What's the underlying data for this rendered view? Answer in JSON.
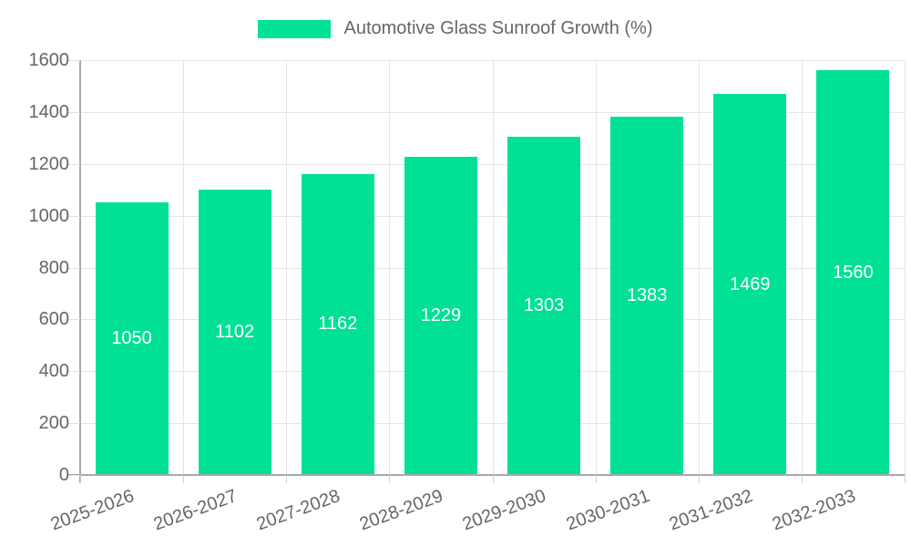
{
  "chart_data": {
    "type": "bar",
    "title": "Automotive Glass Sunroof Growth (%)",
    "legend": {
      "label": "Automotive Glass Sunroof Growth (%)",
      "position": "top-center",
      "swatch_color": "#00E096"
    },
    "categories": [
      "2025-2026",
      "2026-2027",
      "2027-2028",
      "2028-2029",
      "2029-2030",
      "2030-2031",
      "2031-2032",
      "2032-2033"
    ],
    "series": [
      {
        "name": "Automotive Glass Sunroof Growth (%)",
        "values": [
          1050,
          1102,
          1162,
          1229,
          1303,
          1383,
          1469,
          1560
        ]
      }
    ],
    "value_labels": [
      "1050",
      "1102",
      "1162",
      "1229",
      "1303",
      "1383",
      "1469",
      "1560"
    ],
    "xlabel": "",
    "ylabel": "",
    "ylim": [
      0,
      1600
    ],
    "yticks": [
      0,
      200,
      400,
      600,
      800,
      1000,
      1200,
      1400,
      1600
    ],
    "grid": true,
    "colors": {
      "bar": "#00E096",
      "axis_line": "#a9a9a9",
      "gridline": "#e6e6e6",
      "tick_label": "#666666",
      "value_label": "#ffffff",
      "background": "#ffffff"
    }
  }
}
